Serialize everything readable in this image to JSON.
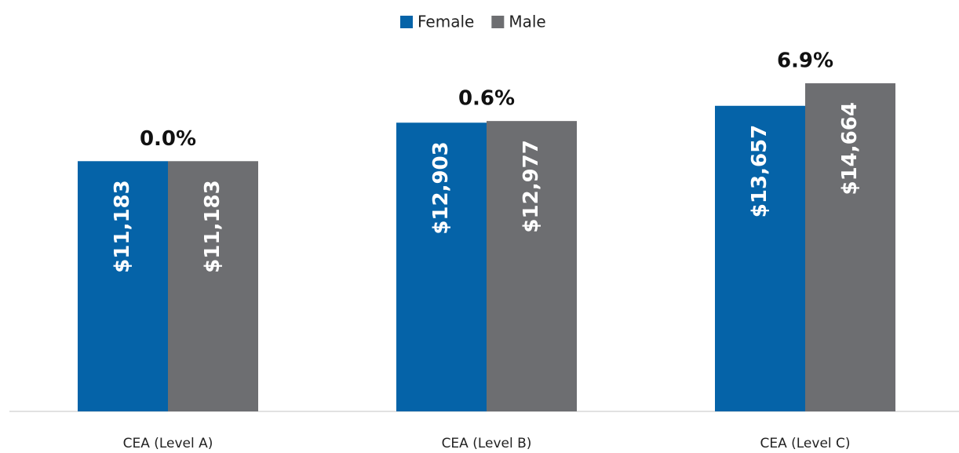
{
  "chart_data": {
    "type": "bar",
    "categories": [
      "CEA (Level A)",
      "CEA (Level B)",
      "CEA (Level C)"
    ],
    "series": [
      {
        "name": "Female",
        "color": "#0563a8",
        "values": [
          11183,
          12903,
          13657
        ],
        "value_labels": [
          "$11,183",
          "$12,903",
          "$13,657"
        ]
      },
      {
        "name": "Male",
        "color": "#6d6e71",
        "values": [
          11183,
          12977,
          14664
        ],
        "value_labels": [
          "$11,183",
          "$12,977",
          "$14,664"
        ]
      }
    ],
    "annotations": [
      "0.0%",
      "0.6%",
      "6.9%"
    ],
    "ylim": [
      0,
      16000
    ],
    "legend": "top"
  }
}
